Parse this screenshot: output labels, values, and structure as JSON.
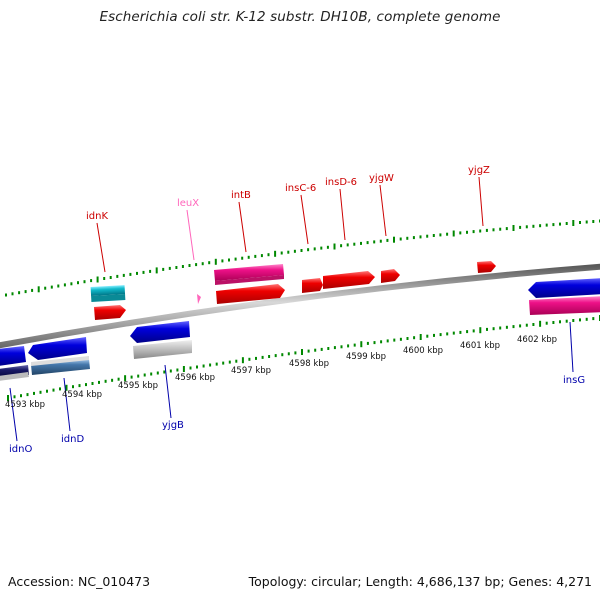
{
  "title": "Escherichia coli str. K-12 substr. DH10B, complete genome",
  "footer": {
    "accession": "Accession: NC_010473",
    "topology": "Topology: circular; Length: 4,686,137 bp; Genes: 4,271"
  },
  "colors": {
    "forward_label": "#cc0000",
    "reverse_label": "#0000aa",
    "trna_label": "#ff66bb",
    "backbone": "#888888",
    "tick": "#008800",
    "red_gene": "#ee0000",
    "blue_gene": "#0000dd",
    "pink_gene": "#ee1188",
    "cyan_gene": "#11bbcc",
    "grey_gene": "#bbbbbb",
    "steelblue_gene": "#4477aa",
    "navy_gene": "#1a1a66"
  },
  "kbp_labels": [
    "4593 kbp",
    "4594 kbp",
    "4595 kbp",
    "4596 kbp",
    "4597 kbp",
    "4598 kbp",
    "4599 kbp",
    "4600 kbp",
    "4601 kbp",
    "4602 kbp"
  ],
  "gene_labels": [
    {
      "name": "idnK",
      "strand": "forward"
    },
    {
      "name": "leuX",
      "strand": "trna"
    },
    {
      "name": "intB",
      "strand": "forward"
    },
    {
      "name": "insC-6",
      "strand": "forward"
    },
    {
      "name": "insD-6",
      "strand": "forward"
    },
    {
      "name": "yjgW",
      "strand": "forward"
    },
    {
      "name": "yjgZ",
      "strand": "forward"
    },
    {
      "name": "idnO",
      "strand": "reverse"
    },
    {
      "name": "idnD",
      "strand": "reverse"
    },
    {
      "name": "yjgB",
      "strand": "reverse"
    },
    {
      "name": "insG",
      "strand": "reverse"
    }
  ]
}
